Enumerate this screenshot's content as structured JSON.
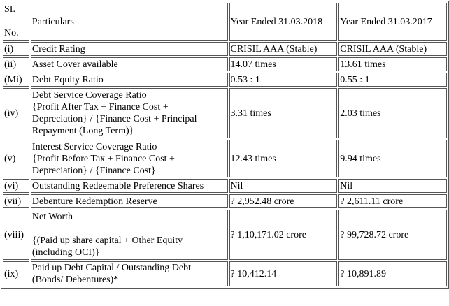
{
  "header": {
    "sl_line1": "SI.",
    "sl_line2": "No.",
    "particulars": "Particulars",
    "year_2018": "Year Ended 31.03.2018",
    "year_2017": "Year Ended 31.03.2017"
  },
  "rows": [
    {
      "sl": "(i)",
      "label": "Credit Rating",
      "v2018": "CRISIL AAA (Stable)",
      "v2017": "CRISIL AAA (Stable)"
    },
    {
      "sl": "(ii)",
      "label": "Asset Cover available",
      "v2018": "14.07 times",
      "v2017": "13.61 times"
    },
    {
      "sl": "(Mi)",
      "label": "Debt Equity Ratio",
      "v2018": "0.53 : 1",
      "v2017": "0.55 : 1"
    },
    {
      "sl": "(iv)",
      "label_lines": [
        "Debt Service Coverage Ratio",
        "{Profit After Tax + Finance Cost +",
        "Depreciation} / {Finance Cost + Principal",
        "Repayment (Long Term)}"
      ],
      "v2018": "3.31 times",
      "v2017": "2.03 times"
    },
    {
      "sl": "(v)",
      "label_lines": [
        "Interest Service Coverage Ratio",
        "{Profit Before Tax + Finance Cost +",
        "Depreciation} / {Finance Cost}"
      ],
      "v2018": "12.43 times",
      "v2017": "9.94 times"
    },
    {
      "sl": "(vi)",
      "label": "Outstanding Redeemable Preference Shares",
      "v2018": "Nil",
      "v2017": "Nil"
    },
    {
      "sl": "(vii)",
      "label": "Debenture Redemption Reserve",
      "v2018": "? 2,952.48 crore",
      "v2017": "? 2,611.11 crore"
    },
    {
      "sl": "(viii)",
      "label_lines": [
        "Net Worth",
        "",
        "{(Paid up share capital + Other Equity",
        "(including OCI)}"
      ],
      "v2018": "? 1,10,171.02 crore",
      "v2017": "? 99,728.72 crore"
    },
    {
      "sl": "(ix)",
      "label_lines": [
        "Paid up Debt Capital / Outstanding Debt",
        "(Bonds/ Debentures)*"
      ],
      "v2018": "? 10,412.14",
      "v2017": "? 10,891.89"
    }
  ]
}
